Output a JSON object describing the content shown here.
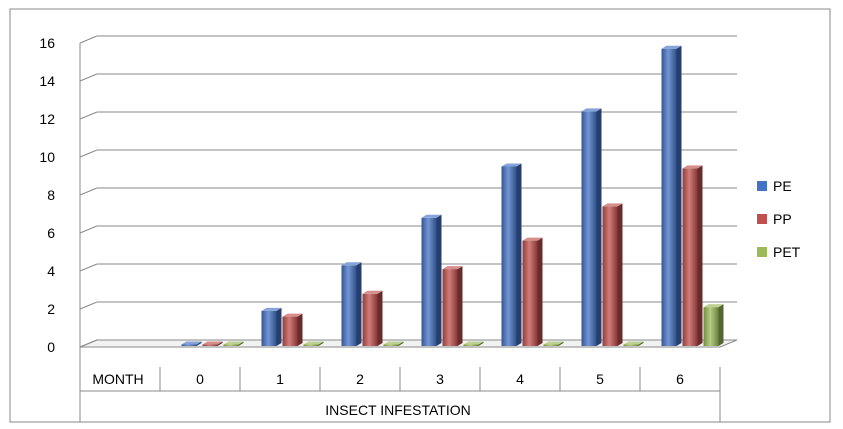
{
  "chart_data": {
    "type": "bar",
    "title": "",
    "xlabel": "INSECT INFESTATION",
    "ylabel": "",
    "row_header": "MONTH",
    "categories": [
      "0",
      "1",
      "2",
      "3",
      "4",
      "5",
      "6"
    ],
    "ylim": [
      0,
      16
    ],
    "yticks": [
      "0",
      "2",
      "4",
      "6",
      "8",
      "10",
      "12",
      "14",
      "16"
    ],
    "grid": true,
    "legend_position": "right",
    "series": [
      {
        "name": "PE",
        "color": "#4472C4",
        "values": [
          0,
          1.9,
          4.3,
          6.8,
          9.5,
          12.4,
          15.7
        ]
      },
      {
        "name": "PP",
        "color": "#C0504D",
        "values": [
          0,
          1.6,
          2.8,
          4.1,
          5.6,
          7.4,
          9.4
        ]
      },
      {
        "name": "PET",
        "color": "#9BBB59",
        "values": [
          0,
          0,
          0,
          0,
          0,
          0,
          2.1
        ]
      }
    ]
  }
}
